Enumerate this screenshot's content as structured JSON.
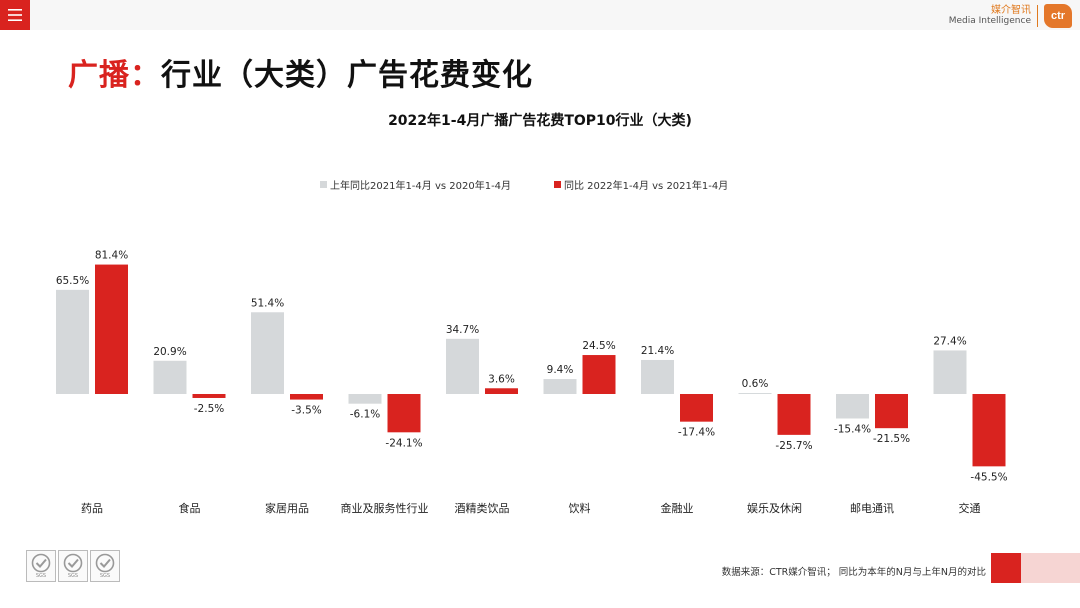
{
  "header": {
    "menu_icon": "hamburger-menu-icon",
    "brand_cn": "媒介智讯",
    "brand_en": "Media Intelligence",
    "brand_logo": "ctr"
  },
  "page": {
    "title_accent": "广播：",
    "title_rest": "行业（大类）广告花费变化"
  },
  "colors": {
    "accent": "#d9231f",
    "series_prev": "#d5d8da",
    "series_curr": "#d9231f"
  },
  "chart_data": {
    "type": "bar",
    "title": "2022年1-4月广播广告花费TOP10行业（大类)",
    "legend_position": "top-center",
    "categories": [
      "药品",
      "食品",
      "家居用品",
      "商业及服务性行业",
      "酒精类饮品",
      "饮料",
      "金融业",
      "娱乐及休闲",
      "邮电通讯",
      "交通"
    ],
    "series": [
      {
        "name": "上年同比2021年1-4月  vs  2020年1-4月",
        "values": [
          65.5,
          20.9,
          51.4,
          -6.1,
          34.7,
          9.4,
          21.4,
          0.6,
          -15.4,
          27.4
        ],
        "labels": [
          "65.5%",
          "20.9%",
          "51.4%",
          "-6.1%",
          "34.7%",
          "9.4%",
          "21.4%",
          "0.6%",
          "-15.4%",
          "27.4%"
        ]
      },
      {
        "name": "同比 2022年1-4月  vs  2021年1-4月",
        "values": [
          81.4,
          -2.5,
          -3.5,
          -24.1,
          3.6,
          24.5,
          -17.4,
          -25.7,
          -21.5,
          -45.5
        ],
        "labels": [
          "81.4%",
          "-2.5%",
          "-3.5%",
          "-24.1%",
          "3.6%",
          "24.5%",
          "-17.4%",
          "-25.7%",
          "-21.5%",
          "-45.5%"
        ]
      }
    ],
    "xlabel": "",
    "ylabel": "",
    "ylim": [
      -50,
      90
    ],
    "grid": false
  },
  "footer": {
    "source": "数据来源：CTR媒介智讯；  同比为本年的N月与上年N月的对比",
    "badges": [
      {
        "icon": "sgs-certification-icon",
        "label": "SGS"
      },
      {
        "icon": "sgs-certification-icon",
        "label": "SGS"
      },
      {
        "icon": "sgs-certification-icon",
        "label": "SGS"
      }
    ]
  }
}
